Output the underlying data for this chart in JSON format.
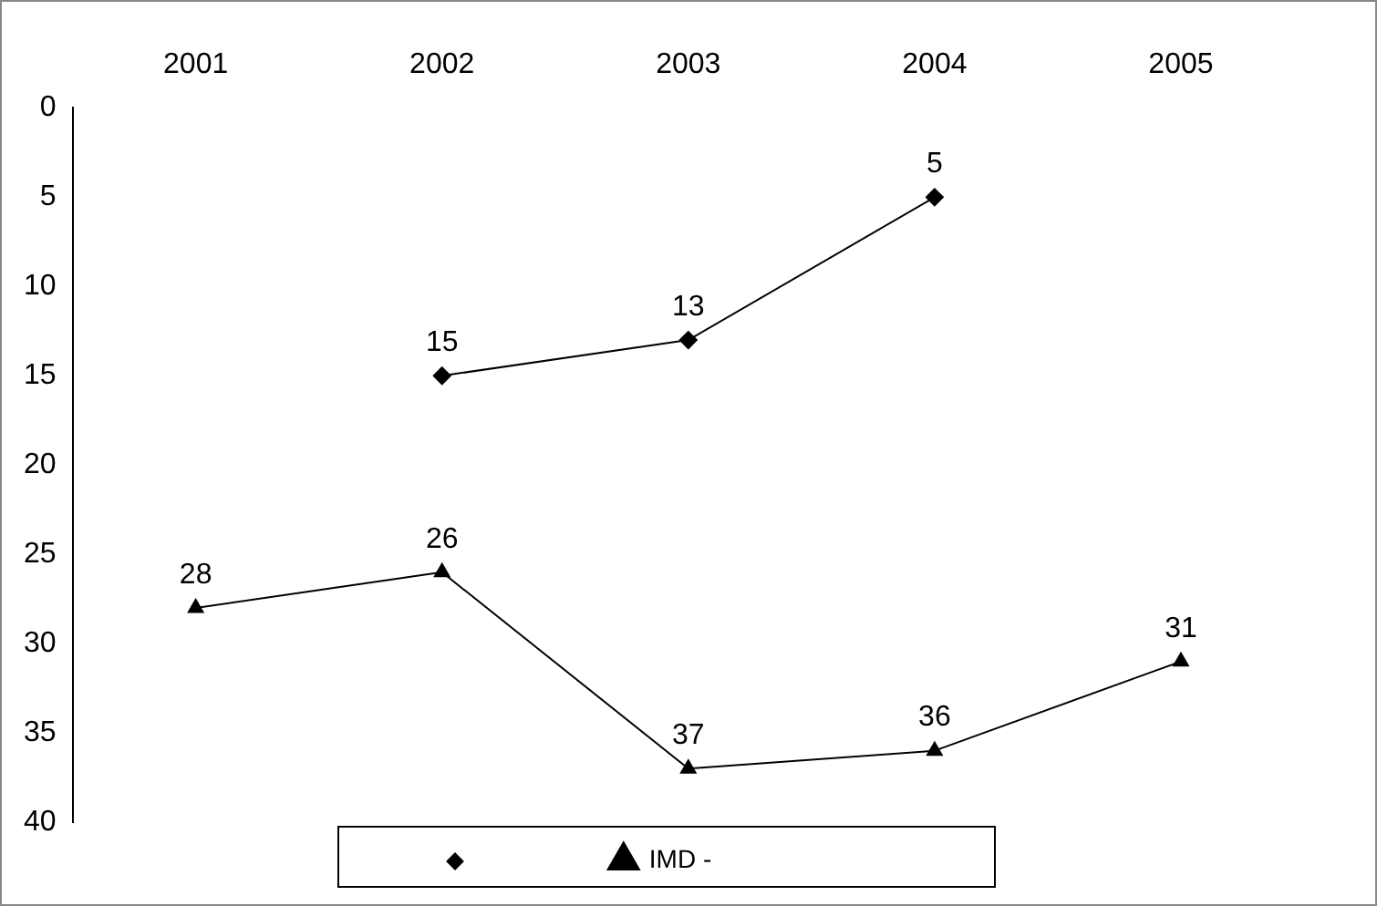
{
  "chart_data": {
    "type": "line",
    "categories": [
      "2001",
      "2002",
      "2003",
      "2004",
      "2005"
    ],
    "series": [
      {
        "color": "#000000",
        "marker": "diamond",
        "values": [
          null,
          15,
          13,
          5,
          null
        ]
      },
      {
        "name": "IMD -",
        "color": "#000000",
        "marker": "triangle",
        "values": [
          28,
          26,
          37,
          36,
          31
        ]
      }
    ],
    "ylim": [
      40,
      0
    ],
    "yticks": [
      0,
      5,
      10,
      15,
      20,
      25,
      30,
      35,
      40
    ],
    "grid": false,
    "legend": "bottom",
    "data_labels": true,
    "line_style": "solid"
  }
}
